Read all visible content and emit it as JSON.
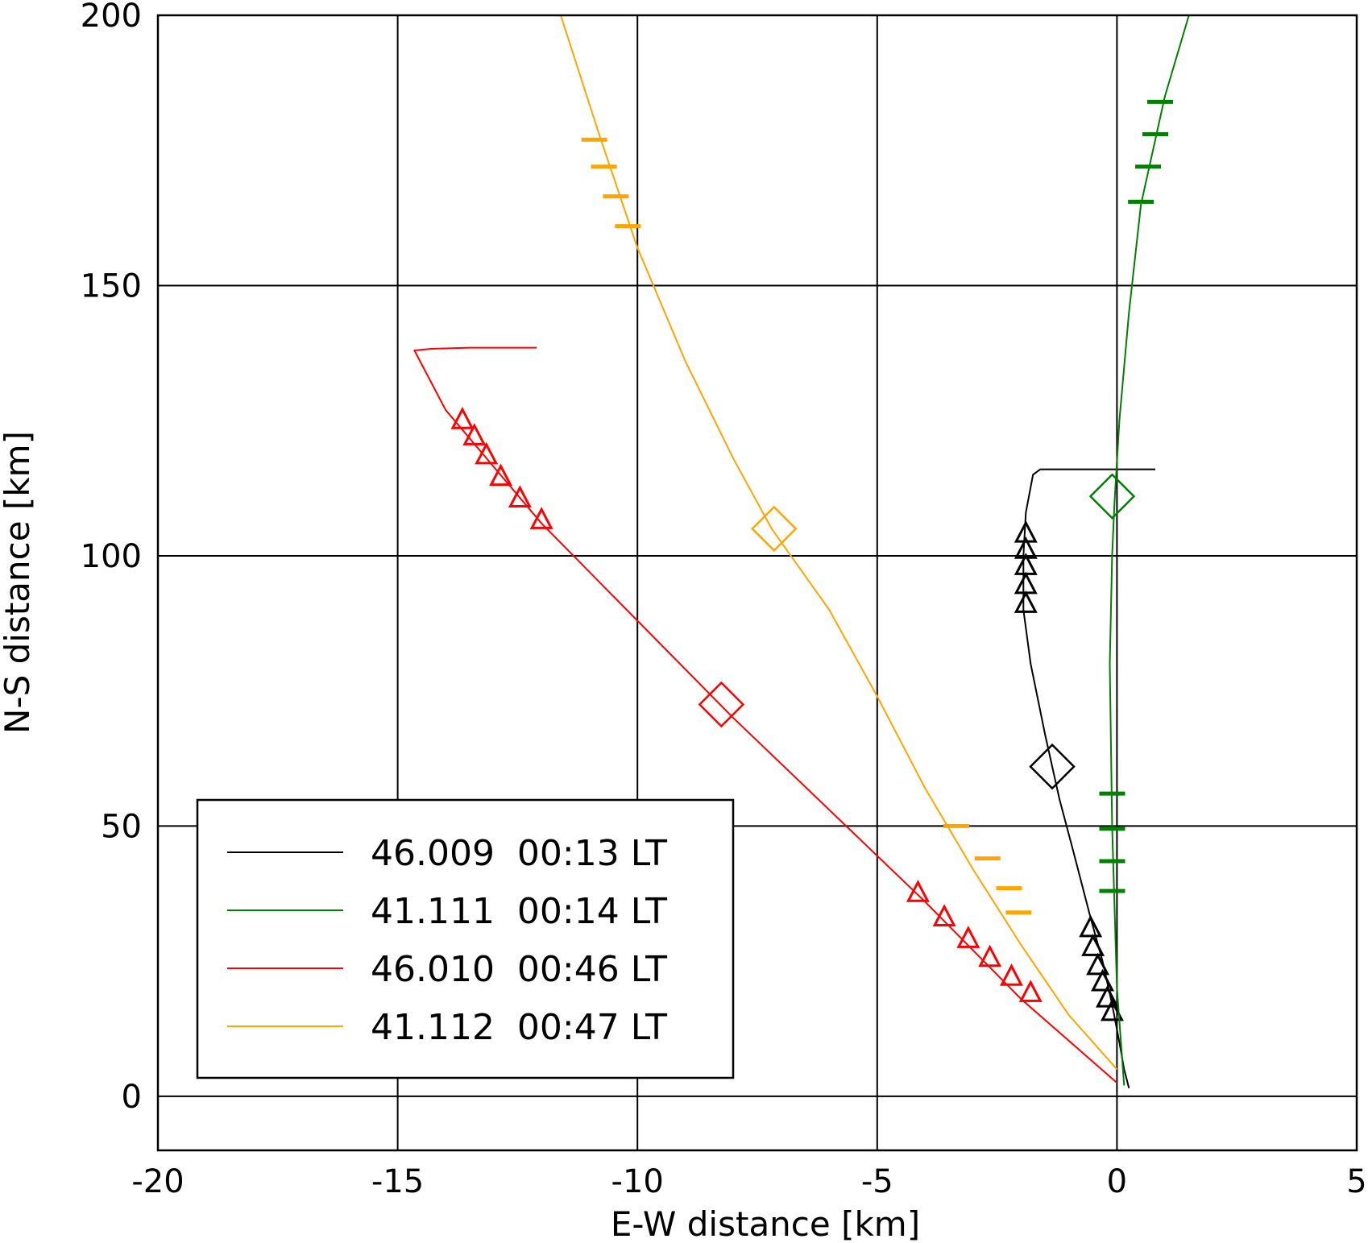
{
  "chart_data": {
    "type": "line",
    "xlabel": "E-W distance [km]",
    "ylabel": "N-S distance [km]",
    "xlim": [
      -20,
      5
    ],
    "ylim": [
      -10,
      200
    ],
    "xticks": [
      -20,
      -15,
      -10,
      -5,
      0,
      5
    ],
    "yticks": [
      0,
      50,
      100,
      150,
      200
    ],
    "xtick_labels": [
      "-20",
      "-15",
      "-10",
      "-5",
      "0",
      "5"
    ],
    "ytick_labels": [
      "0",
      "50",
      "100",
      "150",
      "200"
    ],
    "grid": true,
    "legend_position": "bottom-left",
    "series": [
      {
        "name": "46.009  00:13 LT",
        "color": "#000000",
        "marker": "triangle",
        "points": [
          [
            0.25,
            1.5
          ],
          [
            0.15,
            5
          ],
          [
            0.05,
            10
          ],
          [
            -0.1,
            17
          ],
          [
            -0.3,
            25
          ],
          [
            -0.55,
            33
          ],
          [
            -0.9,
            45
          ],
          [
            -1.2,
            55
          ],
          [
            -1.5,
            67
          ],
          [
            -1.8,
            80
          ],
          [
            -1.95,
            90
          ],
          [
            -1.95,
            100
          ],
          [
            -1.9,
            108
          ],
          [
            -1.75,
            115
          ],
          [
            -1.6,
            116
          ],
          [
            0.8,
            116
          ]
        ],
        "triangles": [
          [
            -0.55,
            31
          ],
          [
            -0.5,
            27.5
          ],
          [
            -0.4,
            24
          ],
          [
            -0.3,
            21
          ],
          [
            -0.2,
            18
          ],
          [
            -0.1,
            15.5
          ],
          [
            -1.9,
            104
          ],
          [
            -1.9,
            101
          ],
          [
            -1.9,
            98
          ],
          [
            -1.9,
            94.5
          ],
          [
            -1.9,
            91
          ]
        ],
        "diamond": [
          -1.35,
          61
        ]
      },
      {
        "name": "41.111  00:14 LT",
        "color": "#008000",
        "marker": "dash",
        "points": [
          [
            0.15,
            2
          ],
          [
            0.0,
            20
          ],
          [
            -0.1,
            50
          ],
          [
            -0.15,
            80
          ],
          [
            -0.1,
            100
          ],
          [
            -0.05,
            110
          ],
          [
            0.05,
            125
          ],
          [
            0.25,
            145
          ],
          [
            0.5,
            165
          ],
          [
            1.0,
            185
          ],
          [
            1.5,
            200
          ]
        ],
        "dashes": [
          [
            -0.1,
            38
          ],
          [
            -0.1,
            43.5
          ],
          [
            -0.1,
            49.5
          ],
          [
            -0.1,
            56
          ],
          [
            0.5,
            165.5
          ],
          [
            0.65,
            172
          ],
          [
            0.8,
            178
          ],
          [
            0.9,
            184
          ]
        ],
        "diamond": [
          -0.1,
          111
        ]
      },
      {
        "name": "46.010  00:46 LT",
        "color": "#ff0000",
        "marker": "triangle",
        "points": [
          [
            0.0,
            2.5
          ],
          [
            -2,
            18
          ],
          [
            -4,
            36
          ],
          [
            -6,
            53
          ],
          [
            -8,
            70
          ],
          [
            -10,
            88
          ],
          [
            -12,
            106
          ],
          [
            -14,
            127
          ],
          [
            -14.65,
            138
          ],
          [
            -14.3,
            138.3
          ],
          [
            -13.5,
            138.5
          ],
          [
            -12.1,
            138.5
          ]
        ],
        "triangles": [
          [
            -1.8,
            19
          ],
          [
            -2.2,
            22
          ],
          [
            -2.65,
            25.5
          ],
          [
            -3.1,
            29
          ],
          [
            -3.6,
            33
          ],
          [
            -4.15,
            37.5
          ],
          [
            -12,
            106.5
          ],
          [
            -12.45,
            110.5
          ],
          [
            -12.85,
            114.5
          ],
          [
            -13.15,
            118.5
          ],
          [
            -13.4,
            122
          ],
          [
            -13.65,
            125
          ]
        ],
        "diamond": [
          -8.25,
          72.5
        ]
      },
      {
        "name": "41.112  00:47 LT",
        "color": "#ffa500",
        "marker": "dash",
        "points": [
          [
            0.0,
            5
          ],
          [
            -1,
            15
          ],
          [
            -2,
            28
          ],
          [
            -3,
            42
          ],
          [
            -4,
            57
          ],
          [
            -5,
            74
          ],
          [
            -6,
            90
          ],
          [
            -7.2,
            105
          ],
          [
            -8,
            118
          ],
          [
            -9,
            136
          ],
          [
            -10,
            157
          ],
          [
            -10.8,
            178
          ],
          [
            -11.6,
            200
          ]
        ],
        "dashes": [
          [
            -2.05,
            34
          ],
          [
            -2.25,
            38.5
          ],
          [
            -2.7,
            44
          ],
          [
            -3.35,
            50
          ],
          [
            -10.2,
            161
          ],
          [
            -10.45,
            166.5
          ],
          [
            -10.7,
            172
          ],
          [
            -10.9,
            177
          ]
        ],
        "diamond": [
          -7.15,
          105
        ]
      }
    ]
  }
}
